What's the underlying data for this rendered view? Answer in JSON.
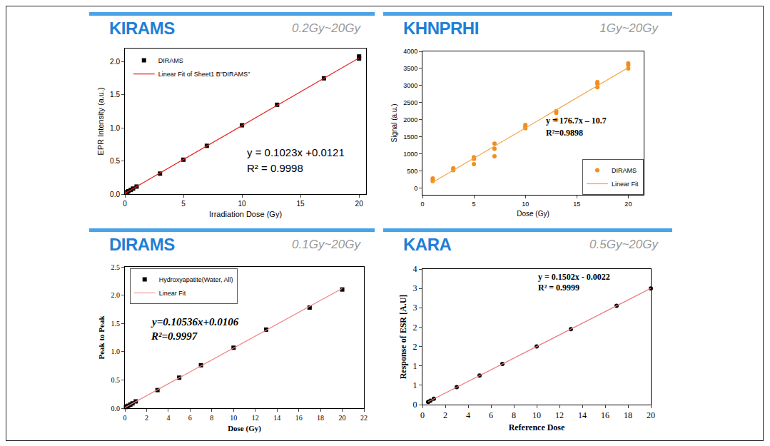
{
  "chart_data": [
    {
      "type": "scatter",
      "title": "KIRAMS",
      "subtitle": "0.2Gy~20Gy",
      "x_label": "Irradiation Dose (Gy)",
      "y_label": "EPR Intensity (a.u.)",
      "xlim": [
        0,
        20.6
      ],
      "xticks": [
        0,
        5,
        10,
        15,
        20
      ],
      "ylim": [
        0,
        2.2
      ],
      "yticks": [
        {
          "value": 0,
          "label": "0.0"
        },
        {
          "value": 0.5,
          "label": "0.5"
        },
        {
          "value": 1,
          "label": "1.0"
        },
        {
          "value": 1.5,
          "label": "1.5"
        },
        {
          "value": 2,
          "label": "2.0"
        }
      ],
      "grid": false,
      "legend": "upper left",
      "annotations": [
        "y = 0.1023x +0.0121",
        "R² = 0.9998"
      ],
      "series": [
        {
          "name": "DIRAMS",
          "type": "scatter",
          "marker": "square",
          "color": "#000000",
          "x": [
            0.2,
            0.3,
            0.5,
            0.7,
            1,
            3,
            5,
            7,
            10,
            13,
            17,
            20,
            20
          ],
          "values": [
            0.033,
            0.043,
            0.063,
            0.084,
            0.114,
            0.31,
            0.52,
            0.73,
            1.04,
            1.35,
            1.75,
            2.05,
            2.08
          ]
        },
        {
          "name": "Linear Fit of Sheet1 B\"DIRAMS\"",
          "type": "line",
          "line_style": "solid",
          "color": "#e8231f",
          "x": [
            0,
            20
          ],
          "values": [
            0.0121,
            2.0581
          ]
        }
      ]
    },
    {
      "type": "scatter",
      "title": "KHNPRHI",
      "subtitle": "1Gy~20Gy",
      "x_label": "Dose (Gy)",
      "y_label": "Signal (a.u.)",
      "xlim": [
        0,
        21.5
      ],
      "xticks": [
        0,
        5,
        10,
        15,
        20
      ],
      "ylim": [
        -200,
        4000
      ],
      "yticks": [
        0,
        500,
        1000,
        1500,
        2000,
        2500,
        3000,
        3500,
        4000
      ],
      "grid": false,
      "legend": "lower right",
      "annotations": [
        "y = 176.7x – 10.7",
        "R²=0.9898"
      ],
      "series": [
        {
          "name": "DIRAMS",
          "type": "scatter",
          "marker": "circle",
          "color": "#f28e1c",
          "x": [
            1,
            1,
            1,
            3,
            3,
            3,
            5,
            5,
            5,
            7,
            7,
            7,
            10,
            10,
            10,
            13,
            13,
            13,
            17,
            17,
            17,
            20,
            20,
            20
          ],
          "values": [
            200,
            250,
            280,
            520,
            560,
            580,
            700,
            850,
            900,
            930,
            1150,
            1300,
            1750,
            1800,
            1850,
            2000,
            2200,
            2250,
            2950,
            3050,
            3100,
            3500,
            3600,
            3650
          ]
        },
        {
          "name": "Linear Fit",
          "type": "line",
          "line_style": "solid",
          "color": "#f5a445",
          "x": [
            1,
            20
          ],
          "values": [
            166,
            3523
          ]
        }
      ]
    },
    {
      "type": "scatter",
      "title": "DIRAMS",
      "subtitle": "0.1Gy~20Gy",
      "x_label": "Dose (Gy)",
      "y_label": "Peak to Peak",
      "xlim": [
        0,
        22
      ],
      "xticks": [
        0,
        2,
        4,
        6,
        8,
        10,
        12,
        14,
        16,
        18,
        20,
        22
      ],
      "ylim": [
        0,
        2.5
      ],
      "yticks": [
        {
          "value": 0,
          "label": "0.0"
        },
        {
          "value": 0.5,
          "label": "0.5"
        },
        {
          "value": 1,
          "label": "1.0"
        },
        {
          "value": 1.5,
          "label": "1.5"
        },
        {
          "value": 2,
          "label": "2.0"
        },
        {
          "value": 2.5,
          "label": "2.5"
        }
      ],
      "grid": false,
      "legend": "upper left",
      "annotations": [
        "y=0.10536x+0.0106",
        "R²=0.9997"
      ],
      "series": [
        {
          "name": "Hydroxyapatite(Water, All)",
          "type": "scatter",
          "marker": "square",
          "color": "#000000",
          "x": [
            0.1,
            0.2,
            0.3,
            0.5,
            0.7,
            1,
            3,
            5,
            7,
            10,
            13,
            17,
            20
          ],
          "values": [
            0.021,
            0.032,
            0.042,
            0.063,
            0.085,
            0.12,
            0.32,
            0.54,
            0.76,
            1.07,
            1.39,
            1.78,
            2.1
          ]
        },
        {
          "name": "Linear Fit",
          "type": "line",
          "line_style": "solid",
          "color": "#f08080",
          "x": [
            0,
            20
          ],
          "values": [
            0.0106,
            2.118
          ]
        }
      ]
    },
    {
      "type": "scatter",
      "title": "KARA",
      "subtitle": "0.5Gy~20Gy",
      "x_label": "Reference Dose",
      "y_label": "Response of ESR [A.U]",
      "xlim": [
        0,
        20
      ],
      "xticks": [
        0,
        2,
        4,
        6,
        8,
        10,
        12,
        14,
        16,
        18,
        20
      ],
      "ylim": [
        0,
        3.5
      ],
      "yticks": [
        {
          "value": 0,
          "label": "0"
        },
        {
          "value": 0.5,
          "label": "1"
        },
        {
          "value": 1,
          "label": "1"
        },
        {
          "value": 1.5,
          "label": "2"
        },
        {
          "value": 2,
          "label": "2"
        },
        {
          "value": 2.5,
          "label": "3"
        },
        {
          "value": 3,
          "label": "3"
        },
        {
          "value": 3.5,
          "label": "4"
        }
      ],
      "grid": false,
      "annotations": [
        "y = 0.1502x - 0.0022",
        "R² = 0.9999"
      ],
      "series": [
        {
          "type": "scatter",
          "marker": "circle",
          "color": "#000000",
          "x": [
            0.5,
            0.7,
            1,
            3,
            5,
            7,
            10,
            13,
            17,
            20
          ],
          "values": [
            0.07,
            0.1,
            0.15,
            0.45,
            0.75,
            1.05,
            1.5,
            1.95,
            2.55,
            3.0
          ]
        },
        {
          "type": "line",
          "line_style": "solid",
          "color": "#e87878",
          "x": [
            0.5,
            20
          ],
          "values": [
            0.0729,
            3.0018
          ]
        }
      ]
    }
  ]
}
